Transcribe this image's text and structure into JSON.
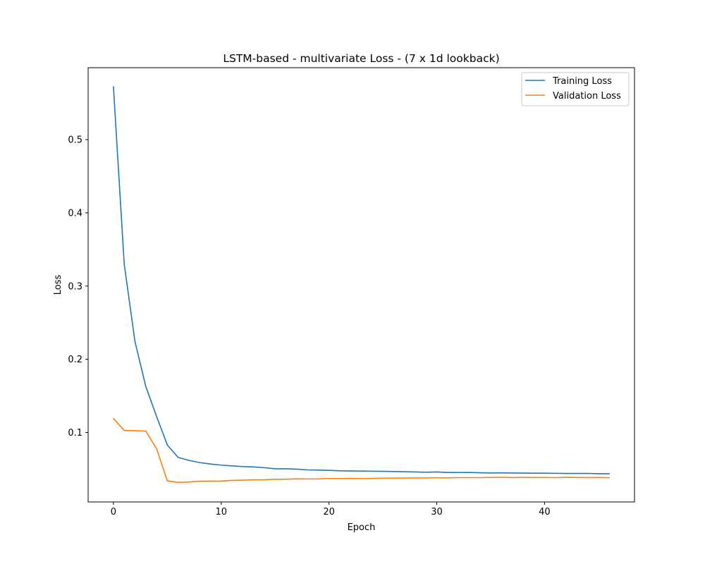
{
  "chart_data": {
    "type": "line",
    "title": "LSTM-based - multivariate Loss - (7 x 1d lookback)",
    "xlabel": "Epoch",
    "ylabel": "Loss",
    "xlim": [
      -2.35,
      48.35
    ],
    "ylim": [
      0.0052,
      0.5982
    ],
    "xticks": [
      0,
      10,
      20,
      30,
      40
    ],
    "yticks": [
      0.1,
      0.2,
      0.3,
      0.4,
      0.5
    ],
    "grid": false,
    "legend_position": "top-right",
    "x": [
      0,
      1,
      2,
      3,
      4,
      5,
      6,
      7,
      8,
      9,
      10,
      11,
      12,
      13,
      14,
      15,
      16,
      17,
      18,
      19,
      20,
      21,
      22,
      23,
      24,
      25,
      26,
      27,
      28,
      29,
      30,
      31,
      32,
      33,
      34,
      35,
      36,
      37,
      38,
      39,
      40,
      41,
      42,
      43,
      44,
      45,
      46
    ],
    "series": [
      {
        "name": "Training Loss",
        "color": "#1f77b4",
        "values": [
          0.572,
          0.33,
          0.224,
          0.163,
          0.122,
          0.083,
          0.066,
          0.062,
          0.059,
          0.057,
          0.0555,
          0.0545,
          0.0535,
          0.053,
          0.052,
          0.0505,
          0.0505,
          0.05,
          0.049,
          0.0487,
          0.0483,
          0.0477,
          0.0475,
          0.0474,
          0.0472,
          0.047,
          0.0468,
          0.0464,
          0.0462,
          0.0458,
          0.0462,
          0.0455,
          0.0454,
          0.0455,
          0.0451,
          0.0447,
          0.0449,
          0.0447,
          0.0446,
          0.0445,
          0.0445,
          0.0443,
          0.0441,
          0.0441,
          0.0442,
          0.0438,
          0.0438
        ]
      },
      {
        "name": "Validation Loss",
        "color": "#ff7f0e",
        "values": [
          0.119,
          0.103,
          0.1025,
          0.102,
          0.078,
          0.034,
          0.032,
          0.0325,
          0.0335,
          0.0337,
          0.0338,
          0.0346,
          0.035,
          0.0355,
          0.0355,
          0.0362,
          0.0362,
          0.0368,
          0.0366,
          0.0367,
          0.0372,
          0.0372,
          0.0374,
          0.0372,
          0.0374,
          0.0377,
          0.0378,
          0.0379,
          0.038,
          0.038,
          0.0382,
          0.0381,
          0.0384,
          0.0384,
          0.0384,
          0.0387,
          0.0389,
          0.0385,
          0.0387,
          0.0386,
          0.0386,
          0.0384,
          0.0388,
          0.0386,
          0.0385,
          0.0386,
          0.0383
        ]
      }
    ]
  }
}
